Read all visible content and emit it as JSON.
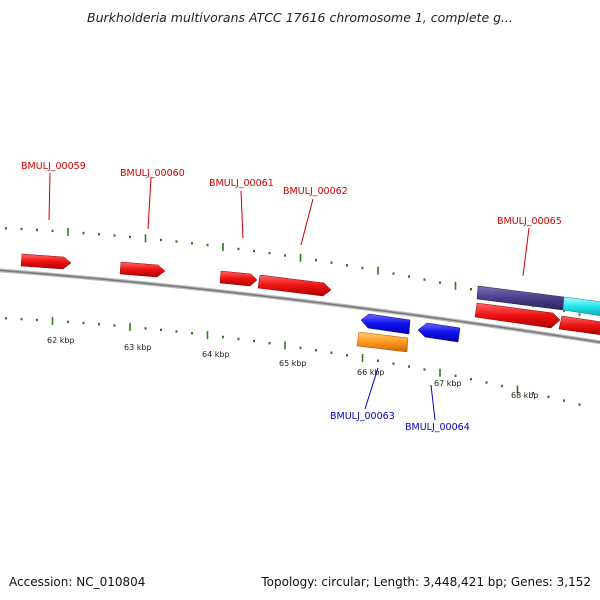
{
  "title": "Burkholderia multivorans ATCC 17616 chromosome 1, complete g...",
  "footer": {
    "accession": "Accession: NC_010804",
    "summary": "Topology: circular; Length: 3,448,421 bp; Genes: 3,152"
  },
  "colors": {
    "forward_gene": "#ee1111",
    "reverse_gene": "#1111ee",
    "orange_gene": "#ff9922",
    "purple_gene": "#4a3f8a",
    "cyan_gene": "#22e4ee",
    "backbone": "#888888",
    "ticks": "#2a7a1a",
    "forward_label": "#cc0000",
    "reverse_label": "#0000bb"
  },
  "scale_labels": [
    "62 kbp",
    "63 kbp",
    "64 kbp",
    "65 kbp",
    "66 kbp",
    "67 kbp",
    "68 kbp"
  ],
  "gene_labels": {
    "g59": "BMULJ_00059",
    "g60": "BMULJ_00060",
    "g61": "BMULJ_00061",
    "g62": "BMULJ_00062",
    "g63": "BMULJ_00063",
    "g64": "BMULJ_00064",
    "g65": "BMULJ_00065"
  }
}
